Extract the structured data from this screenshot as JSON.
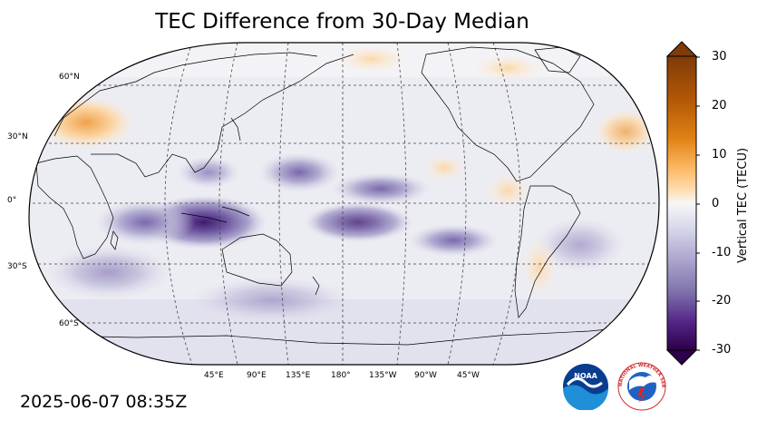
{
  "title": "TEC Difference from 30-Day Median",
  "timestamp": "2025-06-07 08:35Z",
  "lat_labels": [
    "60°N",
    "30°N",
    "0°",
    "30°S",
    "60°S"
  ],
  "lon_labels": [
    "45°E",
    "90°E",
    "135°E",
    "180°",
    "135°W",
    "90°W",
    "45°W"
  ],
  "colorbar": {
    "label": "Vertical TEC (TECU)",
    "ticks": [
      "30",
      "20",
      "10",
      "0",
      "-10",
      "-20",
      "-30"
    ],
    "range": [
      -30,
      30
    ],
    "colors": {
      "max": "#7f3b08",
      "mid": "#f7f7f7",
      "min": "#2d004b"
    }
  },
  "logos": {
    "noaa_text": "NOAA",
    "nws_text": "NATIONAL WEATHER SERVICE"
  }
}
